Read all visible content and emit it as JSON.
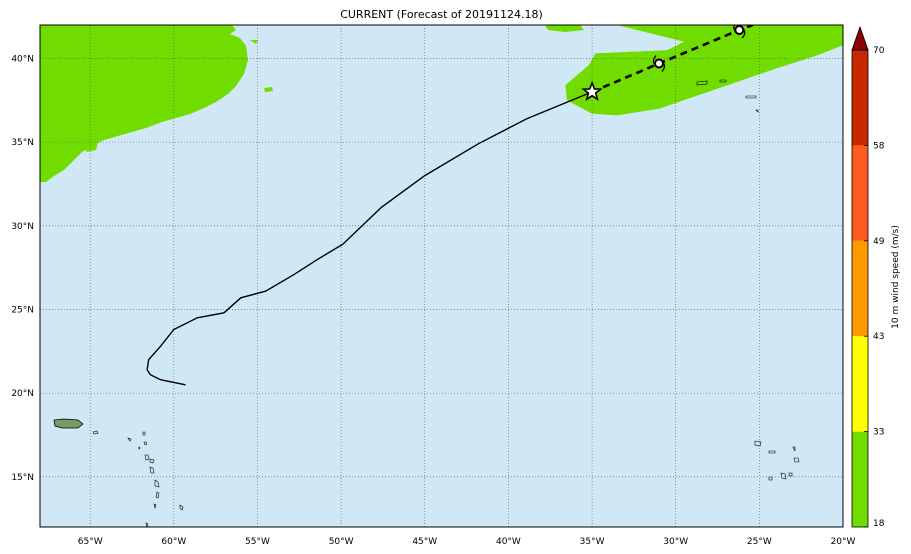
{
  "title": "CURRENT (Forecast of 20191124.18)",
  "map": {
    "lon_range": [
      -68,
      -20
    ],
    "lat_range": [
      12,
      42
    ],
    "ocean_color": "#d0e8f5",
    "land_color": "#70dc00",
    "grid": true,
    "lon_ticks": [
      {
        "value": -65,
        "label": "65°W"
      },
      {
        "value": -60,
        "label": "60°W"
      },
      {
        "value": -55,
        "label": "55°W"
      },
      {
        "value": -50,
        "label": "50°W"
      },
      {
        "value": -45,
        "label": "45°W"
      },
      {
        "value": -40,
        "label": "40°W"
      },
      {
        "value": -35,
        "label": "35°W"
      },
      {
        "value": -30,
        "label": "30°W"
      },
      {
        "value": -25,
        "label": "25°W"
      },
      {
        "value": -20,
        "label": "20°W"
      }
    ],
    "lat_ticks": [
      {
        "value": 15,
        "label": "15°N"
      },
      {
        "value": 20,
        "label": "20°N"
      },
      {
        "value": 25,
        "label": "25°N"
      },
      {
        "value": 30,
        "label": "30°N"
      },
      {
        "value": 35,
        "label": "35°N"
      },
      {
        "value": 40,
        "label": "40°N"
      }
    ],
    "past_track": [
      [
        -59.3,
        20.5
      ],
      [
        -60.8,
        20.8
      ],
      [
        -61.4,
        21.1
      ],
      [
        -61.6,
        21.4
      ],
      [
        -61.5,
        22.0
      ],
      [
        -60.8,
        22.8
      ],
      [
        -60.0,
        23.8
      ],
      [
        -58.6,
        24.5
      ],
      [
        -57.0,
        24.8
      ],
      [
        -56.0,
        25.7
      ],
      [
        -54.5,
        26.1
      ],
      [
        -52.8,
        27.1
      ],
      [
        -51.4,
        28.0
      ],
      [
        -49.9,
        28.9
      ],
      [
        -47.6,
        31.1
      ],
      [
        -45.0,
        33.0
      ],
      [
        -41.8,
        34.9
      ],
      [
        -38.9,
        36.4
      ],
      [
        -35.0,
        38.0
      ]
    ],
    "current_position": [
      -35.0,
      38.0
    ],
    "forecast_track": [
      [
        -35.0,
        38.0
      ],
      [
        -31.0,
        39.7
      ],
      [
        -26.2,
        41.7
      ],
      [
        -25.4,
        42.0
      ]
    ],
    "forecast_points": [
      [
        -31.0,
        39.7
      ],
      [
        -26.2,
        41.7
      ]
    ],
    "wind_swath": [
      [
        -33.5,
        42
      ],
      [
        -22,
        42
      ],
      [
        -20,
        42
      ],
      [
        -20,
        40.8
      ],
      [
        -21.5,
        40.2
      ],
      [
        -24,
        39.4
      ],
      [
        -27.5,
        38.2
      ],
      [
        -31,
        37.0
      ],
      [
        -33.5,
        36.6
      ],
      [
        -35.0,
        36.7
      ],
      [
        -36.5,
        37.5
      ],
      [
        -36.6,
        38.4
      ],
      [
        -35.2,
        39.6
      ],
      [
        -34.8,
        40.3
      ],
      [
        -30.5,
        40.5
      ],
      [
        -29.5,
        41.0
      ],
      [
        -33.5,
        42
      ]
    ]
  },
  "colorbar": {
    "label": "10 m wind speed (m/s)",
    "ticks": [
      "18",
      "33",
      "43",
      "49",
      "58",
      "70"
    ],
    "colors": [
      "#70dc00",
      "#ffff00",
      "#ff9900",
      "#ff5a1e",
      "#c82800"
    ],
    "extend_color": "#8b0000"
  }
}
